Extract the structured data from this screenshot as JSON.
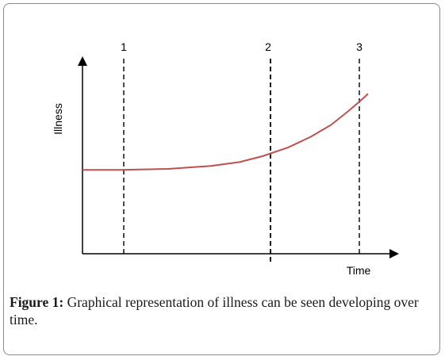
{
  "chart_data": {
    "type": "line",
    "xlabel": "Time",
    "ylabel": "Illness",
    "markers": [
      "1",
      "2",
      "3"
    ],
    "series": [
      {
        "color": "#c0504d",
        "x": [
          0,
          0.13,
          0.3,
          0.45,
          0.55,
          0.63,
          0.72,
          0.8,
          0.87,
          0.93,
          0.97,
          1.0
        ],
        "y": [
          0.43,
          0.43,
          0.435,
          0.45,
          0.47,
          0.5,
          0.545,
          0.6,
          0.66,
          0.73,
          0.78,
          0.82
        ]
      }
    ]
  },
  "caption": {
    "lead": "Figure 1:",
    "text": " Graphical representation of illness can be seen developing over time."
  }
}
